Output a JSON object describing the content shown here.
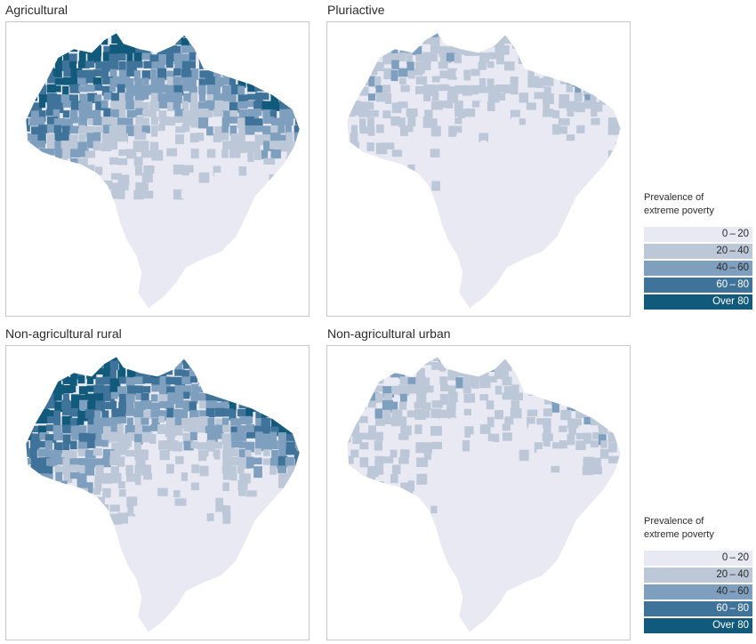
{
  "panels": [
    {
      "title": "Agricultural",
      "shading": "high"
    },
    {
      "title": "Pluriactive",
      "shading": "low"
    },
    {
      "title": "Non-agricultural rural",
      "shading": "high"
    },
    {
      "title": "Non-agricultural urban",
      "shading": "low"
    }
  ],
  "legend": {
    "title_line1": "Prevalence of",
    "title_line2": "extreme poverty",
    "classes": [
      {
        "label": "0 – 20",
        "color": "#e8e9f2"
      },
      {
        "label": "20 – 40",
        "color": "#bcc8d8"
      },
      {
        "label": "40 – 60",
        "color": "#7f9fbf"
      },
      {
        "label": "60 – 80",
        "color": "#3f7399"
      },
      {
        "label": "Over 80",
        "color": "#115a7c"
      }
    ]
  }
}
